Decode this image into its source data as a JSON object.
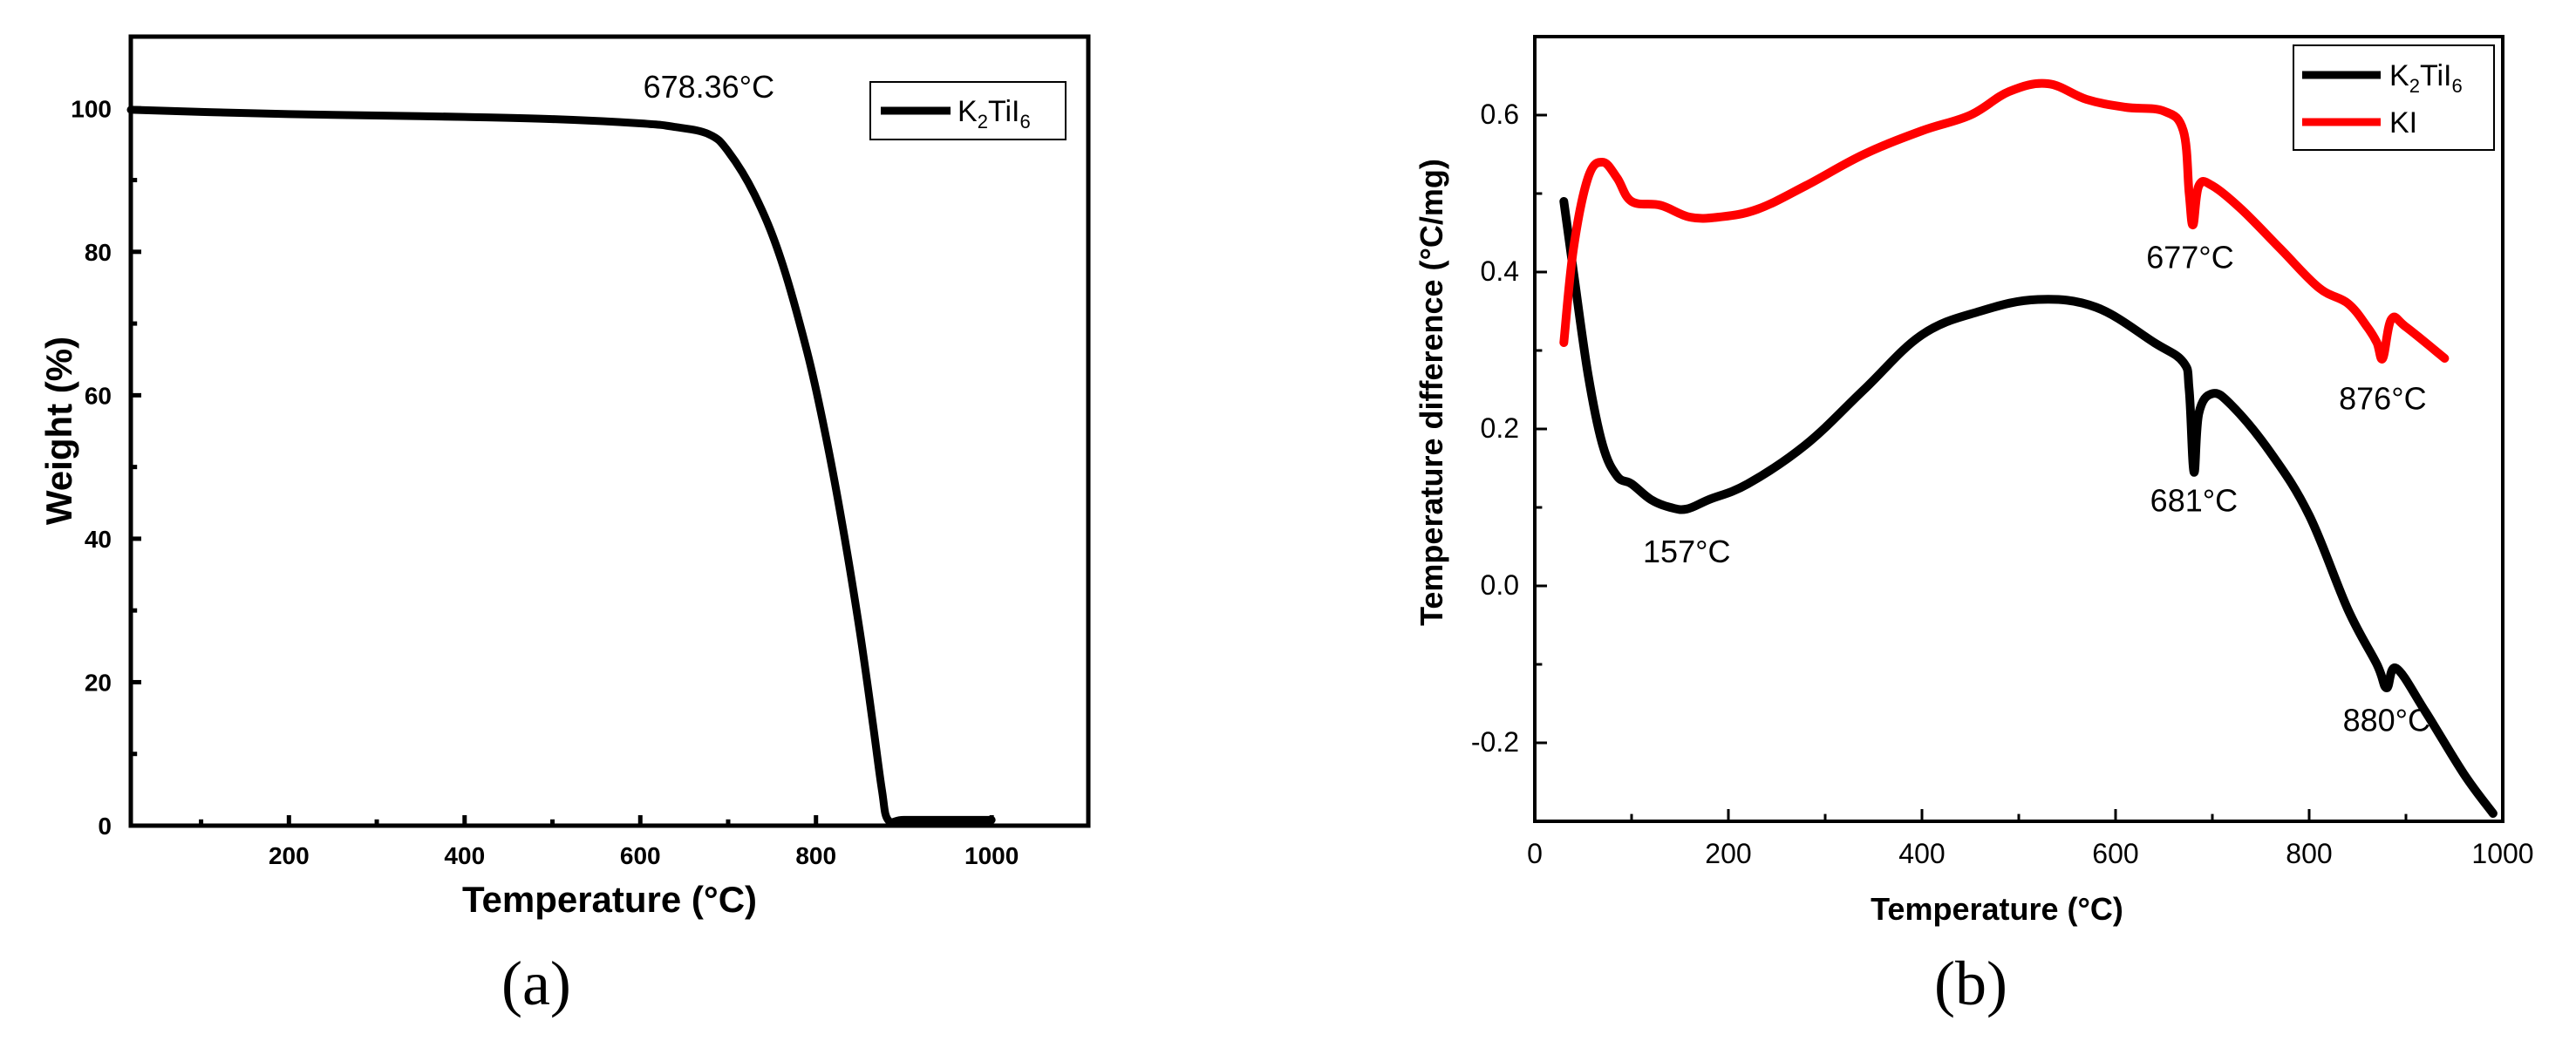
{
  "chart_data": [
    {
      "panel": "(a)",
      "type": "line",
      "title": "",
      "xlabel": "Temperature (°C)",
      "ylabel": "Weight (%)",
      "xlim": [
        20,
        1110
      ],
      "ylim": [
        0,
        110
      ],
      "xticks": [
        200,
        400,
        600,
        800,
        1000
      ],
      "xtick_labels": [
        "200",
        "400",
        "600",
        "800",
        "1000"
      ],
      "yticks": [
        0,
        20,
        40,
        60,
        80,
        100
      ],
      "ytick_labels": [
        "0",
        "20",
        "40",
        "60",
        "80",
        "100"
      ],
      "series": [
        {
          "name": "K2TiI6",
          "legend_main": "K",
          "legend_sub1": "2",
          "legend_mid": "TiI",
          "legend_sub2": "6",
          "color": "#000000",
          "x": [
            20,
            100,
            200,
            300,
            400,
            500,
            600,
            640,
            678,
            700,
            730,
            760,
            790,
            810,
            830,
            850,
            865,
            875,
            882,
            900,
            950,
            1000
          ],
          "y": [
            99.8,
            99.5,
            99.2,
            99.0,
            98.8,
            98.5,
            97.9,
            97.4,
            96.4,
            94.0,
            88.0,
            79.0,
            66.0,
            55.0,
            42.0,
            27.0,
            14.0,
            5.0,
            0.8,
            0.8,
            0.8,
            0.8
          ]
        }
      ],
      "annotations": [
        {
          "text": "678.36°C",
          "x": 678,
          "y": 101.5
        }
      ],
      "legend": "top-right"
    },
    {
      "panel": "(b)",
      "type": "line",
      "title": "",
      "xlabel": "Temperature (°C)",
      "ylabel": "Temperature difference (°C/mg)",
      "xlim": [
        0,
        1000
      ],
      "ylim": [
        -0.3,
        0.7
      ],
      "xticks": [
        0,
        200,
        400,
        600,
        800,
        1000
      ],
      "xtick_labels": [
        "0",
        "200",
        "400",
        "600",
        "800",
        "1000"
      ],
      "yticks": [
        -0.2,
        0.0,
        0.2,
        0.4,
        0.6
      ],
      "ytick_labels": [
        "-0.2",
        "0.0",
        "0.2",
        "0.4",
        "0.6"
      ],
      "series": [
        {
          "name": "K2TiI6",
          "legend_main": "K",
          "legend_sub1": "2",
          "legend_mid": "TiI",
          "legend_sub2": "6",
          "color": "#000000",
          "x": [
            30,
            40,
            55,
            70,
            85,
            100,
            120,
            140,
            157,
            180,
            220,
            280,
            340,
            400,
            460,
            520,
            580,
            640,
            670,
            676,
            681,
            686,
            700,
            720,
            760,
            800,
            840,
            870,
            880,
            890,
            920,
            960,
            990
          ],
          "y": [
            0.49,
            0.4,
            0.27,
            0.18,
            0.14,
            0.13,
            0.11,
            0.1,
            0.098,
            0.11,
            0.13,
            0.18,
            0.25,
            0.32,
            0.35,
            0.365,
            0.355,
            0.31,
            0.285,
            0.25,
            0.145,
            0.22,
            0.245,
            0.23,
            0.17,
            0.09,
            -0.03,
            -0.1,
            -0.13,
            -0.105,
            -0.16,
            -0.24,
            -0.29
          ]
        },
        {
          "name": "KI",
          "legend_main": "KI",
          "color": "#ff0000",
          "x": [
            30,
            40,
            55,
            70,
            85,
            100,
            130,
            160,
            190,
            230,
            280,
            340,
            400,
            450,
            490,
            530,
            570,
            610,
            650,
            670,
            676,
            680,
            686,
            700,
            730,
            770,
            810,
            840,
            860,
            870,
            876,
            885,
            900,
            940
          ],
          "y": [
            0.31,
            0.43,
            0.52,
            0.54,
            0.52,
            0.49,
            0.485,
            0.47,
            0.47,
            0.48,
            0.51,
            0.55,
            0.58,
            0.6,
            0.63,
            0.64,
            0.62,
            0.61,
            0.605,
            0.58,
            0.5,
            0.46,
            0.51,
            0.51,
            0.48,
            0.43,
            0.38,
            0.36,
            0.33,
            0.31,
            0.29,
            0.34,
            0.33,
            0.29
          ]
        }
      ],
      "annotations": [
        {
          "text": "157°C",
          "x": 157,
          "y": 0.03
        },
        {
          "text": "681°C",
          "x": 681,
          "y": 0.095
        },
        {
          "text": "677°C",
          "x": 677,
          "y": 0.405
        },
        {
          "text": "876°C",
          "x": 876,
          "y": 0.225
        },
        {
          "text": "880°C",
          "x": 880,
          "y": -0.185
        }
      ],
      "legend": "top-right"
    }
  ]
}
